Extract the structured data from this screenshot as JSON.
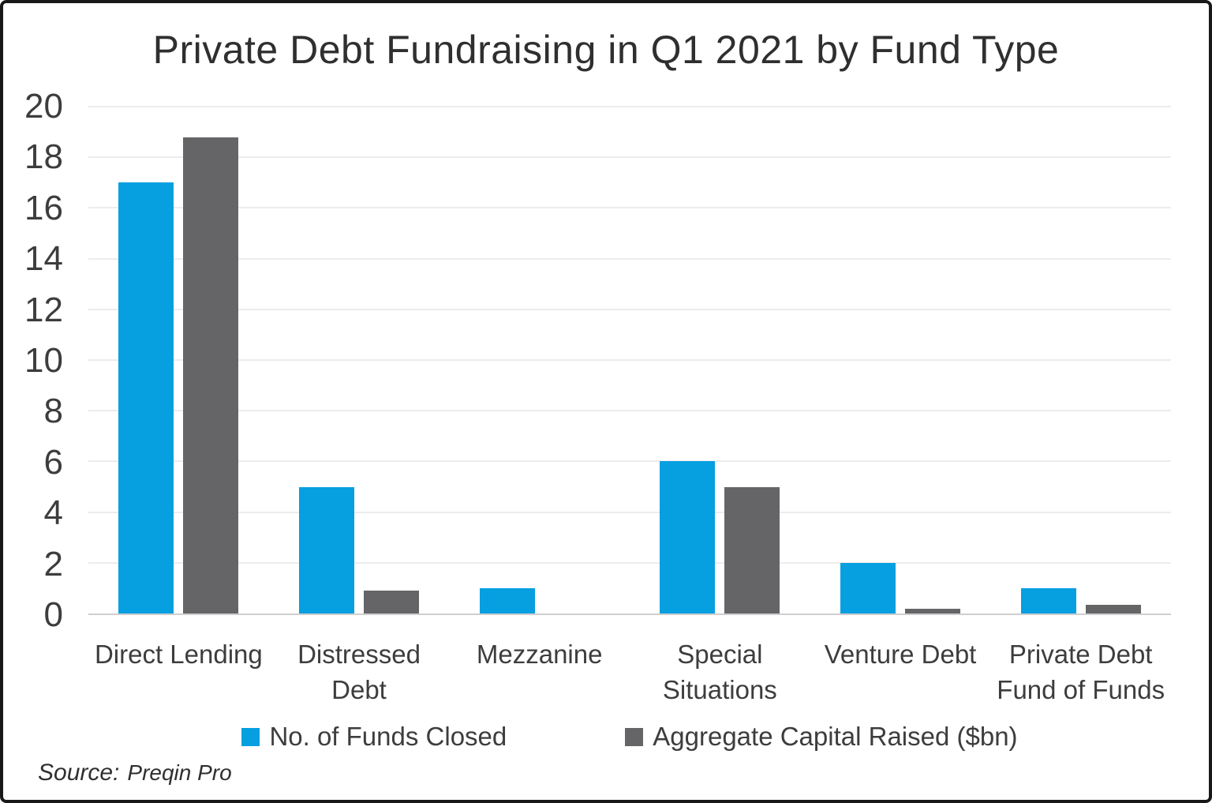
{
  "figure": {
    "background": "#ffffff",
    "border_color": "#181818"
  },
  "chart_data": {
    "type": "bar",
    "title": "Private Debt Fundraising in Q1 2021 by Fund Type",
    "categories": [
      "Direct Lending",
      "Distressed\nDebt",
      "Mezzanine",
      "Special\nSituations",
      "Venture Debt",
      "Private Debt\nFund of Funds"
    ],
    "series": [
      {
        "name": "No. of Funds Closed",
        "color": "#069fe0",
        "values": [
          17,
          5,
          1,
          6,
          2,
          1
        ]
      },
      {
        "name": "Aggregate Capital Raised ($bn)",
        "color": "#656567",
        "values": [
          18.8,
          0.9,
          0,
          5,
          0.2,
          0.35
        ]
      }
    ],
    "xlabel": "",
    "ylabel": "",
    "ylim": [
      0,
      20
    ],
    "yticks": [
      0,
      2,
      4,
      6,
      8,
      10,
      12,
      14,
      16,
      18,
      20
    ],
    "grid": "horizontal",
    "gridline_color": "#ececec",
    "axis_line_color": "#cfcfcf",
    "legend_position": "bottom"
  },
  "source": {
    "label": "Source:",
    "value": "Preqin Pro"
  }
}
